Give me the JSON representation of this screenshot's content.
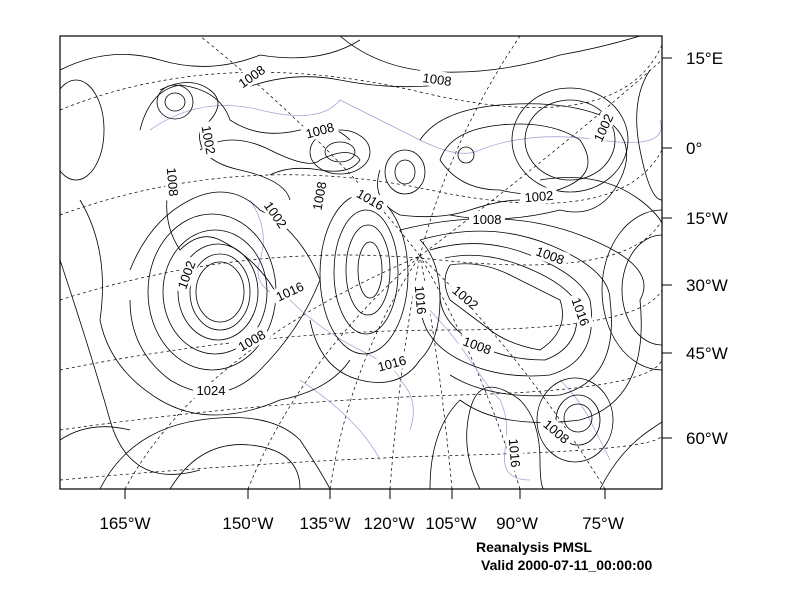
{
  "map": {
    "title": "Reanalysis PMSL",
    "valid": "Valid 2000-07-11_00:00:00",
    "right_axis_labels": [
      "15°E",
      "0°",
      "15°W",
      "30°W",
      "45°W",
      "60°W"
    ],
    "bottom_axis_labels": [
      "165°W",
      "150°W",
      "135°W",
      "120°W",
      "105°W",
      "90°W",
      "75°W"
    ],
    "contour_labels": [
      "1008",
      "1008",
      "1008",
      "1002",
      "1002",
      "1008",
      "1002",
      "1008",
      "1016",
      "1008",
      "1002",
      "1008",
      "1002",
      "1016",
      "1016",
      "1002",
      "1016",
      "1008",
      "1008",
      "1016",
      "1024",
      "1008",
      "1016"
    ],
    "colors": {
      "contour": "#000000",
      "coastline": "#b0a0d8",
      "frame": "#000000",
      "background": "#ffffff"
    }
  }
}
